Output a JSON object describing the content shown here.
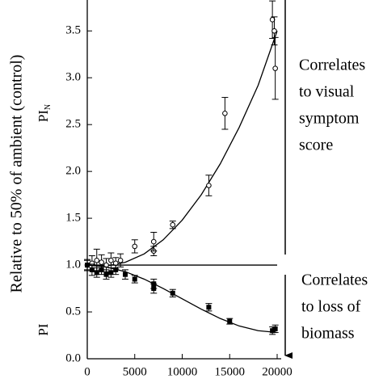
{
  "chart_data": {
    "type": "scatter",
    "y_label": "Relative to 50% of ambient (control)",
    "xlim": [
      0,
      20000
    ],
    "ylim": [
      0,
      3.83
    ],
    "xticks": [
      0,
      5000,
      10000,
      15000,
      20000
    ],
    "yticks": [
      {
        "value": 0,
        "label": "0.0"
      },
      {
        "value": 0.5,
        "label": "0.5"
      },
      {
        "value": 1,
        "label": "1.0"
      },
      {
        "value": 1.5,
        "label": "1.5"
      },
      {
        "value": 2,
        "label": "2.0"
      },
      {
        "value": 2.5,
        "label": "2.5"
      },
      {
        "value": 3,
        "label": "3.0"
      },
      {
        "value": 3.5,
        "label": "3.5"
      }
    ],
    "reference_line": 1,
    "series": [
      {
        "label": {
          "text": "PI",
          "sub": "N"
        },
        "marker": "open-circle",
        "color": "#000000",
        "x": [
          0,
          500,
          1000,
          1500,
          2000,
          2500,
          3000,
          3500,
          5000,
          7000,
          7000,
          9000,
          12800,
          14500,
          19500,
          19700,
          19800
        ],
        "values": [
          1.0,
          1.02,
          1.05,
          1.03,
          1.0,
          1.05,
          1.02,
          1.05,
          1.2,
          1.15,
          1.25,
          1.43,
          1.85,
          2.62,
          3.62,
          3.5,
          3.1
        ],
        "errors": [
          0.06,
          0.08,
          0.12,
          0.08,
          0.07,
          0.08,
          0.06,
          0.07,
          0.07,
          0.05,
          0.1,
          0.04,
          0.11,
          0.17,
          0.2,
          0.15,
          0.33
        ],
        "fit_x": [
          0,
          2000,
          4000,
          6000,
          8000,
          10000,
          12000,
          14000,
          16000,
          18000,
          20000
        ],
        "fit": [
          1.0,
          0.99,
          1.03,
          1.12,
          1.27,
          1.48,
          1.75,
          2.08,
          2.47,
          2.92,
          3.5
        ]
      },
      {
        "label": {
          "text": "PI"
        },
        "marker": "filled-square",
        "color": "#000000",
        "x": [
          0,
          500,
          1000,
          1500,
          2000,
          2500,
          3000,
          4000,
          5000,
          7000,
          7000,
          9000,
          12800,
          15000,
          19500,
          19800
        ],
        "values": [
          1.0,
          0.95,
          0.92,
          0.95,
          0.9,
          0.92,
          0.95,
          0.9,
          0.85,
          0.8,
          0.75,
          0.7,
          0.55,
          0.4,
          0.3,
          0.32
        ],
        "errors": [
          0.05,
          0.06,
          0.05,
          0.05,
          0.05,
          0.05,
          0.05,
          0.05,
          0.04,
          0.05,
          0.05,
          0.04,
          0.04,
          0.03,
          0.04,
          0.04
        ],
        "fit_x": [
          0,
          2000,
          4000,
          6000,
          8000,
          10000,
          12000,
          14000,
          16000,
          18000,
          20000
        ],
        "fit": [
          1.0,
          0.98,
          0.93,
          0.85,
          0.75,
          0.64,
          0.53,
          0.43,
          0.35,
          0.3,
          0.28
        ]
      }
    ],
    "annotations": [
      {
        "lines": [
          "Correlates",
          "to visual",
          "symptom",
          "score"
        ]
      },
      {
        "lines": [
          "Correlates",
          "to loss of",
          "biomass"
        ]
      }
    ]
  }
}
